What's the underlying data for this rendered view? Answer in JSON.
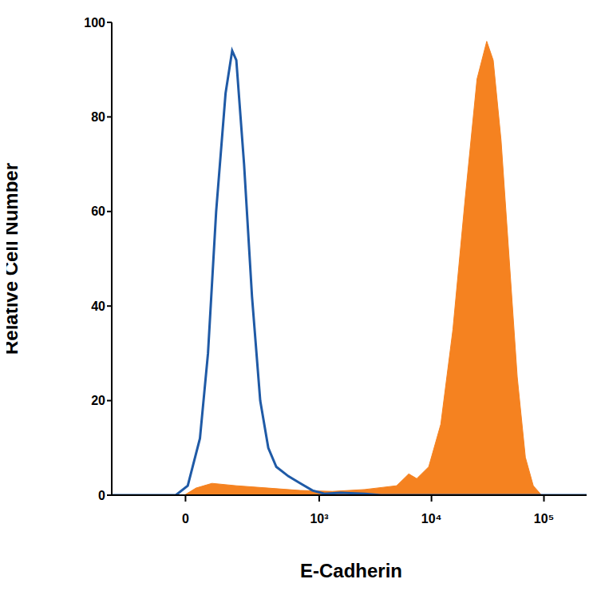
{
  "chart_data": {
    "type": "line",
    "x_label": "E-Cadherin",
    "y_label": "Relative Cell Number",
    "xlim": [
      -280,
      260000
    ],
    "xticks": [
      0,
      {
        "value": 1000,
        "label": "10³"
      },
      {
        "value": 10000,
        "label": "10⁴"
      },
      {
        "value": 100000,
        "label": "10⁵"
      }
    ],
    "ylim": [
      0,
      100
    ],
    "yticks": [
      0,
      20,
      40,
      60,
      80,
      100
    ],
    "series": [
      {
        "type": "area",
        "color": "#f58220",
        "x": [
          -280,
          -3,
          28,
          74,
          161,
          342,
          677,
          1310,
          2550,
          4900,
          6280,
          7400,
          9450,
          12100,
          15500,
          19800,
          25400,
          31000,
          35400,
          41600,
          49100,
          57900,
          68400,
          80400,
          95300,
          260000
        ],
        "values": [
          0,
          0,
          1.5,
          2.5,
          2,
          1.5,
          1,
          0.8,
          1.2,
          2,
          4.5,
          3.5,
          6,
          15,
          35,
          62,
          88,
          96,
          92,
          75,
          50,
          25,
          8,
          2,
          0,
          0
        ]
      },
      {
        "type": "line",
        "color": "#1f5aa6",
        "x": [
          -280,
          -26,
          6,
          39,
          62,
          87,
          119,
          144,
          161,
          196,
          237,
          286,
          342,
          407,
          527,
          677,
          870,
          1115,
          1550,
          2550,
          3550,
          260000
        ],
        "values": [
          0,
          0,
          2,
          12,
          30,
          60,
          85,
          94,
          92,
          70,
          42,
          20,
          10,
          6,
          4,
          2.5,
          1,
          0.3,
          0.5,
          0.3,
          0,
          0
        ]
      }
    ]
  }
}
